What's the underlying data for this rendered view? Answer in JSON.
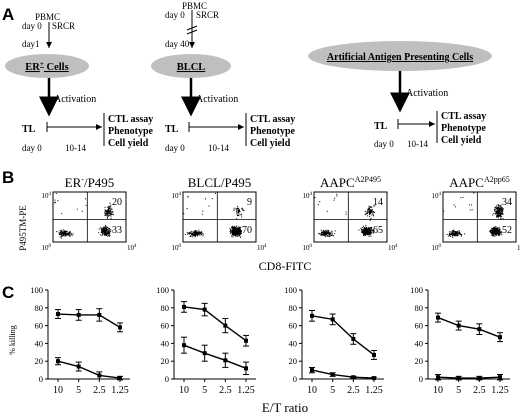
{
  "panel_letters": {
    "a": "A",
    "b": "B",
    "c": "C"
  },
  "panel_a": {
    "schemes": [
      {
        "pbmc": "PBMC",
        "day_start": "day 0",
        "srcr": "SRCR",
        "day_mid": "day1",
        "cells": "ER",
        "cells_sup": "+",
        "cells_suffix": " Cells",
        "activation": "Activation",
        "tl": "TL",
        "tl_day0": "day 0",
        "tl_day_end": "10-14",
        "outputs": [
          "CTL assay",
          "Phenotype",
          "Cell yield"
        ]
      },
      {
        "pbmc": "PBMC",
        "day_start": "day 0",
        "srcr": "SRCR",
        "day_mid": "day 40",
        "cells": "BLCL",
        "activation": "Activation",
        "tl": "TL",
        "tl_day0": "day 0",
        "tl_day_end": "10-14",
        "outputs": [
          "CTL assay",
          "Phenotype",
          "Cell yield"
        ]
      },
      {
        "cells": "Artificial Antigen Presenting Cells",
        "activation": "Activation",
        "tl": "TL",
        "tl_day0": "day 0",
        "tl_day_end": "10-14",
        "outputs": [
          "CTL assay",
          "Phenotype",
          "Cell yield"
        ]
      }
    ]
  },
  "panel_b": {
    "y_axis_label": "P495TM-PE",
    "x_axis_label": "CD8-FITC",
    "tick_top": "10",
    "tick_top_exp": "4",
    "tick_0": "10",
    "tick_0_exp": "0",
    "plots": [
      {
        "title": "ER",
        "title_sup": "-",
        "title_suffix": "/P495",
        "upper_right_pct": "20",
        "lower_right_pct": "33"
      },
      {
        "title": "BLCL/P495",
        "upper_right_pct": "9",
        "lower_right_pct": "70"
      },
      {
        "title": "AAPC",
        "title_sup": "A2P495",
        "upper_right_pct": "14",
        "lower_right_pct": "65"
      },
      {
        "title": "AAPC",
        "title_sup": "A2pp65",
        "upper_right_pct": "34",
        "lower_right_pct": "52"
      }
    ]
  },
  "chart_data": [
    {
      "type": "line",
      "ylabel": "% killing",
      "ylim": [
        0,
        100
      ],
      "x_categories": [
        "10",
        "5",
        "2.5",
        "1.25"
      ],
      "series": [
        {
          "values": [
            73,
            72,
            72,
            58
          ]
        },
        {
          "values": [
            20,
            14,
            4,
            1
          ]
        }
      ]
    },
    {
      "type": "line",
      "ylim": [
        0,
        100
      ],
      "x_categories": [
        "10",
        "5",
        "2.5",
        "1.25"
      ],
      "series": [
        {
          "values": [
            81,
            78,
            60,
            43
          ]
        },
        {
          "values": [
            38,
            29,
            21,
            12
          ]
        }
      ]
    },
    {
      "type": "line",
      "ylim": [
        0,
        100
      ],
      "x_categories": [
        "10",
        "5",
        "2.5",
        "1.25"
      ],
      "series": [
        {
          "values": [
            71,
            67,
            45,
            27
          ]
        },
        {
          "values": [
            10,
            5,
            2,
            1
          ]
        }
      ]
    },
    {
      "type": "line",
      "ylim": [
        0,
        100
      ],
      "x_categories": [
        "10",
        "5",
        "2.5",
        "1.25"
      ],
      "series": [
        {
          "values": [
            69,
            60,
            56,
            47
          ]
        },
        {
          "values": [
            2,
            1,
            1,
            2
          ]
        }
      ]
    }
  ],
  "panel_c": {
    "ylabel": "% killing",
    "y_ticks": [
      "0",
      "20",
      "40",
      "60",
      "80",
      "100"
    ],
    "x_ticks": [
      "10",
      "5",
      "2.5",
      "1.25"
    ],
    "xlabel": "E/T ratio"
  }
}
